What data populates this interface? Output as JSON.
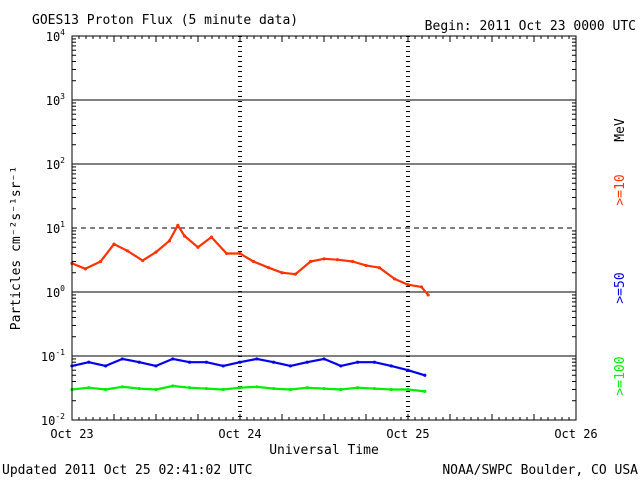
{
  "chart_data": {
    "type": "line",
    "title": "GOES13 Proton Flux (5 minute data)",
    "begin_label": "Begin: 2011 Oct 23 0000 UTC",
    "xlabel": "Universal Time",
    "ylabel": "Particles cm⁻²s⁻¹sr⁻¹",
    "y_scale": "log",
    "ylim": [
      0.01,
      10000
    ],
    "y_ticks": [
      {
        "base": "10",
        "exp": "-2"
      },
      {
        "base": "10",
        "exp": "-1"
      },
      {
        "base": "10",
        "exp": "0"
      },
      {
        "base": "10",
        "exp": "1"
      },
      {
        "base": "10",
        "exp": "2"
      },
      {
        "base": "10",
        "exp": "3"
      },
      {
        "base": "10",
        "exp": "4"
      }
    ],
    "x_unit": "days since 2011 Oct 23 0000 UTC",
    "xlim": [
      0,
      3
    ],
    "x_ticks": [
      "Oct 23",
      "Oct 24",
      "Oct 25",
      "Oct 26"
    ],
    "threshold_dashed": 10,
    "units_label": "MeV",
    "series": [
      {
        "name": ">=10",
        "color": "#ff3300",
        "x": [
          0.0,
          0.08,
          0.17,
          0.25,
          0.33,
          0.42,
          0.5,
          0.58,
          0.63,
          0.67,
          0.75,
          0.83,
          0.92,
          1.0,
          1.08,
          1.17,
          1.25,
          1.33,
          1.42,
          1.5,
          1.58,
          1.67,
          1.75,
          1.83,
          1.92,
          2.0,
          2.08,
          2.12
        ],
        "values": [
          2.8,
          2.3,
          3.0,
          5.6,
          4.4,
          3.1,
          4.2,
          6.3,
          11.0,
          7.5,
          5.0,
          7.2,
          4.0,
          4.0,
          3.0,
          2.4,
          2.0,
          1.9,
          3.0,
          3.3,
          3.2,
          3.0,
          2.6,
          2.4,
          1.6,
          1.3,
          1.2,
          0.9
        ]
      },
      {
        "name": ">=50",
        "color": "#0000ee",
        "x": [
          0.0,
          0.1,
          0.2,
          0.3,
          0.4,
          0.5,
          0.6,
          0.7,
          0.8,
          0.9,
          1.0,
          1.1,
          1.2,
          1.3,
          1.4,
          1.5,
          1.6,
          1.7,
          1.8,
          1.9,
          2.0,
          2.1
        ],
        "values": [
          0.07,
          0.08,
          0.07,
          0.09,
          0.08,
          0.07,
          0.09,
          0.08,
          0.08,
          0.07,
          0.08,
          0.09,
          0.08,
          0.07,
          0.08,
          0.09,
          0.07,
          0.08,
          0.08,
          0.07,
          0.06,
          0.05
        ]
      },
      {
        "name": ">=100",
        "color": "#00ee00",
        "x": [
          0.0,
          0.1,
          0.2,
          0.3,
          0.4,
          0.5,
          0.6,
          0.7,
          0.8,
          0.9,
          1.0,
          1.1,
          1.2,
          1.3,
          1.4,
          1.5,
          1.6,
          1.7,
          1.8,
          1.9,
          2.0,
          2.1
        ],
        "values": [
          0.03,
          0.032,
          0.03,
          0.033,
          0.031,
          0.03,
          0.034,
          0.032,
          0.031,
          0.03,
          0.032,
          0.033,
          0.031,
          0.03,
          0.032,
          0.031,
          0.03,
          0.032,
          0.031,
          0.03,
          0.03,
          0.028
        ]
      }
    ]
  },
  "footer": {
    "updated": "Updated 2011 Oct 25 02:41:02 UTC",
    "credit": "NOAA/SWPC Boulder, CO USA"
  }
}
